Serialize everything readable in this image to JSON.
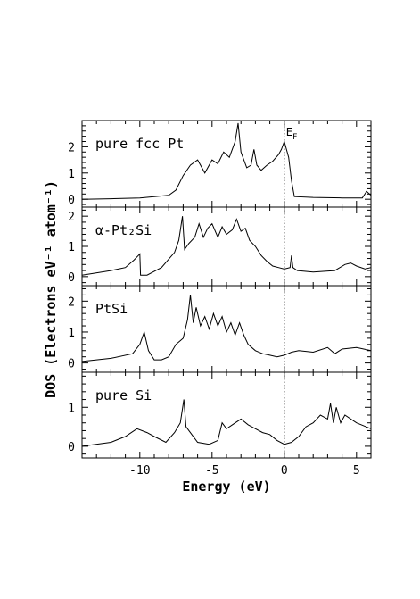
{
  "chart_data": {
    "type": "line",
    "xlabel": "Energy (eV)",
    "ylabel": "DOS (Electrons eV⁻¹ atom⁻¹)",
    "xlim": [
      -14,
      6
    ],
    "x_ticks": [
      "-10",
      "-5",
      "0",
      "5"
    ],
    "fermi_level": {
      "x": 0,
      "label": "E",
      "label_subscript": "F",
      "style": "dotted"
    },
    "panels": [
      {
        "label": "pure fcc Pt",
        "ylim": [
          -0.3,
          3.0
        ],
        "y_ticks": [
          "0",
          "1",
          "2"
        ],
        "series": [
          {
            "x": [
              -14,
              -12,
              -10,
              -8,
              -7.5,
              -7.0,
              -6.5,
              -6.0,
              -5.5,
              -5.0,
              -4.6,
              -4.2,
              -3.8,
              -3.4,
              -3.2,
              -3.0,
              -2.6,
              -2.3,
              -2.1,
              -1.9,
              -1.6,
              -1.2,
              -0.8,
              -0.4,
              -0.2,
              0.0,
              0.3,
              0.5,
              0.7,
              2,
              4,
              5.4,
              5.7,
              6.0
            ],
            "y": [
              0,
              0.02,
              0.05,
              0.15,
              0.35,
              0.9,
              1.3,
              1.5,
              1.0,
              1.5,
              1.35,
              1.8,
              1.6,
              2.2,
              2.9,
              1.8,
              1.2,
              1.3,
              1.9,
              1.3,
              1.1,
              1.3,
              1.45,
              1.7,
              1.9,
              2.2,
              1.6,
              0.7,
              0.1,
              0.07,
              0.05,
              0.05,
              0.3,
              0.15
            ]
          }
        ]
      },
      {
        "label": "α-Pt₂Si",
        "ylim": [
          -0.3,
          2.3
        ],
        "y_ticks": [
          "0",
          "1",
          "2"
        ],
        "series": [
          {
            "x": [
              -14,
              -12,
              -11,
              -10.4,
              -10.1,
              -10.0,
              -9.95,
              -9.5,
              -8.5,
              -7.6,
              -7.3,
              -7.05,
              -6.9,
              -6.6,
              -6.2,
              -5.9,
              -5.6,
              -5.3,
              -5.0,
              -4.6,
              -4.3,
              -4.0,
              -3.6,
              -3.3,
              -3.0,
              -2.7,
              -2.4,
              -2.0,
              -1.6,
              -1.2,
              -0.8,
              -0.4,
              0.0,
              0.4,
              0.5,
              0.6,
              0.9,
              2,
              3.5,
              4.2,
              4.6,
              5.0,
              5.6,
              6.0
            ],
            "y": [
              0.05,
              0.2,
              0.3,
              0.55,
              0.7,
              0.75,
              0.05,
              0.05,
              0.3,
              0.8,
              1.2,
              2.0,
              0.9,
              1.1,
              1.3,
              1.75,
              1.3,
              1.6,
              1.75,
              1.3,
              1.65,
              1.4,
              1.55,
              1.9,
              1.5,
              1.6,
              1.2,
              1.0,
              0.7,
              0.5,
              0.35,
              0.3,
              0.25,
              0.3,
              0.7,
              0.3,
              0.2,
              0.15,
              0.2,
              0.4,
              0.45,
              0.35,
              0.25,
              0.3
            ]
          }
        ]
      },
      {
        "label": "PtSi",
        "ylim": [
          -0.3,
          2.5
        ],
        "y_ticks": [
          "0",
          "1",
          "2"
        ],
        "series": [
          {
            "x": [
              -14,
              -12,
              -10.5,
              -10.0,
              -9.7,
              -9.4,
              -9.0,
              -8.5,
              -8.0,
              -7.5,
              -7.0,
              -6.7,
              -6.5,
              -6.3,
              -6.1,
              -5.8,
              -5.5,
              -5.2,
              -4.9,
              -4.6,
              -4.3,
              -4.0,
              -3.7,
              -3.4,
              -3.1,
              -2.8,
              -2.5,
              -2.0,
              -1.5,
              -1.0,
              -0.5,
              0.0,
              0.5,
              1.0,
              2.0,
              3.0,
              3.5,
              4.0,
              5.0,
              6.0
            ],
            "y": [
              0.05,
              0.15,
              0.3,
              0.6,
              1.0,
              0.4,
              0.1,
              0.1,
              0.2,
              0.6,
              0.8,
              1.4,
              2.2,
              1.3,
              1.8,
              1.2,
              1.5,
              1.1,
              1.6,
              1.2,
              1.5,
              1.0,
              1.3,
              0.9,
              1.3,
              0.9,
              0.6,
              0.4,
              0.3,
              0.25,
              0.2,
              0.25,
              0.35,
              0.4,
              0.35,
              0.5,
              0.3,
              0.45,
              0.5,
              0.4
            ]
          }
        ]
      },
      {
        "label": "pure Si",
        "ylim": [
          -0.3,
          1.9
        ],
        "y_ticks": [
          "0",
          "1"
        ],
        "series": [
          {
            "x": [
              -14,
              -12,
              -11,
              -10.2,
              -9.5,
              -9.0,
              -8.2,
              -7.6,
              -7.2,
              -6.95,
              -6.8,
              -6.4,
              -6.0,
              -5.2,
              -4.6,
              -4.3,
              -4.0,
              -3.6,
              -3.0,
              -2.5,
              -2.0,
              -1.5,
              -1.0,
              -0.5,
              0.0,
              0.5,
              1.0,
              1.5,
              2.0,
              2.5,
              3.0,
              3.2,
              3.4,
              3.6,
              3.9,
              4.2,
              5.0,
              6.0
            ],
            "y": [
              0.0,
              0.1,
              0.25,
              0.45,
              0.35,
              0.25,
              0.1,
              0.35,
              0.6,
              1.2,
              0.5,
              0.3,
              0.1,
              0.05,
              0.15,
              0.6,
              0.45,
              0.55,
              0.7,
              0.55,
              0.45,
              0.35,
              0.3,
              0.15,
              0.05,
              0.1,
              0.25,
              0.5,
              0.6,
              0.8,
              0.7,
              1.1,
              0.6,
              1.0,
              0.6,
              0.8,
              0.6,
              0.45
            ]
          }
        ]
      }
    ]
  }
}
